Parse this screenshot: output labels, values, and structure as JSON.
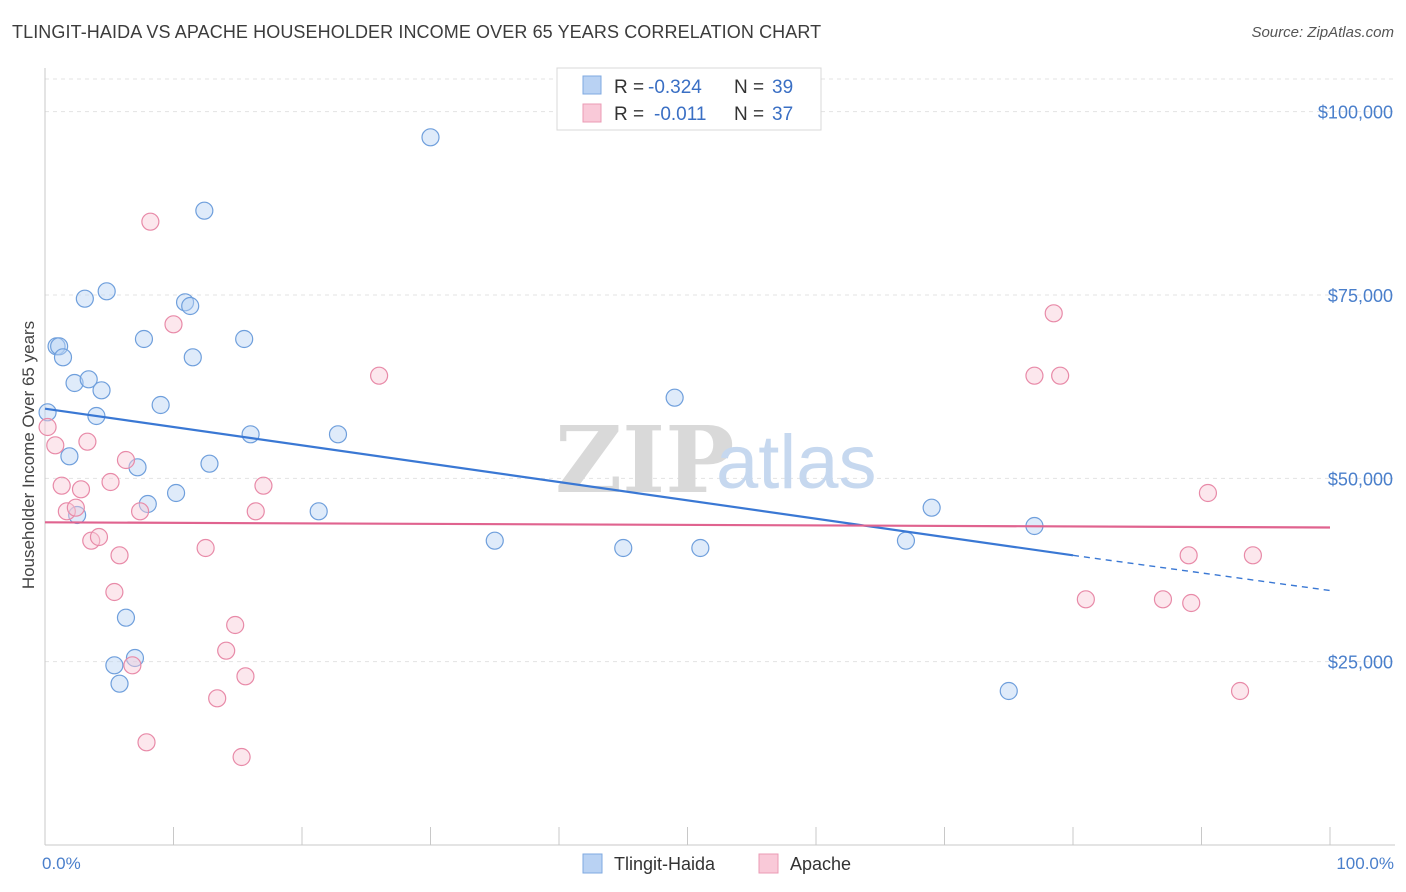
{
  "header": {
    "title": "TLINGIT-HAIDA VS APACHE HOUSEHOLDER INCOME OVER 65 YEARS CORRELATION CHART",
    "source": "Source: ZipAtlas.com"
  },
  "watermark": {
    "zip": "ZIP",
    "atlas": "atlas"
  },
  "legend": {
    "r_label": "R =",
    "n_label": "N =",
    "series": [
      {
        "name": "Tlingit-Haida",
        "r": "-0.324",
        "n": "39",
        "color": "#a9c8f0",
        "stroke": "#6f9fdc"
      },
      {
        "name": "Apache",
        "r": "-0.011",
        "n": "37",
        "color": "#f7bcd0",
        "stroke": "#e88aa8"
      }
    ]
  },
  "chart_data": {
    "type": "scatter",
    "xlabel": "",
    "ylabel": "Householder Income Over 65 years",
    "xlim": [
      0,
      100
    ],
    "ylim": [
      0,
      105000
    ],
    "x_tick_labels": [
      "0.0%",
      "100.0%"
    ],
    "y_ticks": [
      25000,
      50000,
      75000,
      100000
    ],
    "y_tick_labels": [
      "$25,000",
      "$50,000",
      "$75,000",
      "$100,000"
    ],
    "grid": true,
    "legend_position": "top-center",
    "series": [
      {
        "name": "Tlingit-Haida",
        "color": "#6f9fdc",
        "line_color": "#3a78d4",
        "trend": {
          "x0": 0,
          "y0": 59500,
          "x1": 80,
          "y1": 39500,
          "dash_to_x": 100,
          "dash_to_y": 34700
        },
        "points": [
          [
            0.2,
            59000
          ],
          [
            0.9,
            68000
          ],
          [
            1.1,
            68000
          ],
          [
            1.4,
            66500
          ],
          [
            1.9,
            53000
          ],
          [
            2.3,
            63000
          ],
          [
            2.5,
            45000
          ],
          [
            3.1,
            74500
          ],
          [
            3.4,
            63500
          ],
          [
            4.0,
            58500
          ],
          [
            4.4,
            62000
          ],
          [
            4.8,
            75500
          ],
          [
            5.4,
            24500
          ],
          [
            5.8,
            22000
          ],
          [
            6.3,
            31000
          ],
          [
            7.0,
            25500
          ],
          [
            7.2,
            51500
          ],
          [
            7.7,
            69000
          ],
          [
            8.0,
            46500
          ],
          [
            9.0,
            60000
          ],
          [
            10.2,
            48000
          ],
          [
            10.9,
            74000
          ],
          [
            11.3,
            73500
          ],
          [
            11.5,
            66500
          ],
          [
            12.4,
            86500
          ],
          [
            12.8,
            52000
          ],
          [
            15.5,
            69000
          ],
          [
            16.0,
            56000
          ],
          [
            21.3,
            45500
          ],
          [
            22.8,
            56000
          ],
          [
            30.0,
            96500
          ],
          [
            35.0,
            41500
          ],
          [
            45.0,
            40500
          ],
          [
            49.0,
            61000
          ],
          [
            51.0,
            40500
          ],
          [
            67.0,
            41500
          ],
          [
            69.0,
            46000
          ],
          [
            75.0,
            21000
          ],
          [
            77.0,
            43500
          ]
        ]
      },
      {
        "name": "Apache",
        "color": "#e88aa8",
        "line_color": "#e0638f",
        "trend": {
          "x0": 0,
          "y0": 44000,
          "x1": 100,
          "y1": 43300
        },
        "points": [
          [
            0.2,
            57000
          ],
          [
            0.8,
            54500
          ],
          [
            1.3,
            49000
          ],
          [
            1.7,
            45500
          ],
          [
            2.4,
            46000
          ],
          [
            2.8,
            48500
          ],
          [
            3.3,
            55000
          ],
          [
            3.6,
            41500
          ],
          [
            4.2,
            42000
          ],
          [
            5.1,
            49500
          ],
          [
            5.4,
            34500
          ],
          [
            5.8,
            39500
          ],
          [
            6.3,
            52500
          ],
          [
            6.8,
            24500
          ],
          [
            7.4,
            45500
          ],
          [
            7.9,
            14000
          ],
          [
            8.2,
            85000
          ],
          [
            10.0,
            71000
          ],
          [
            12.5,
            40500
          ],
          [
            13.4,
            20000
          ],
          [
            14.1,
            26500
          ],
          [
            14.8,
            30000
          ],
          [
            15.3,
            12000
          ],
          [
            15.6,
            23000
          ],
          [
            16.4,
            45500
          ],
          [
            17.0,
            49000
          ],
          [
            26.0,
            64000
          ],
          [
            77.0,
            64000
          ],
          [
            78.5,
            72500
          ],
          [
            79.0,
            64000
          ],
          [
            81.0,
            33500
          ],
          [
            87.0,
            33500
          ],
          [
            89.0,
            39500
          ],
          [
            89.2,
            33000
          ],
          [
            90.5,
            48000
          ],
          [
            93.0,
            21000
          ],
          [
            94.0,
            39500
          ]
        ]
      }
    ]
  },
  "bottom_legend": [
    {
      "name": "Tlingit-Haida"
    },
    {
      "name": "Apache"
    }
  ]
}
